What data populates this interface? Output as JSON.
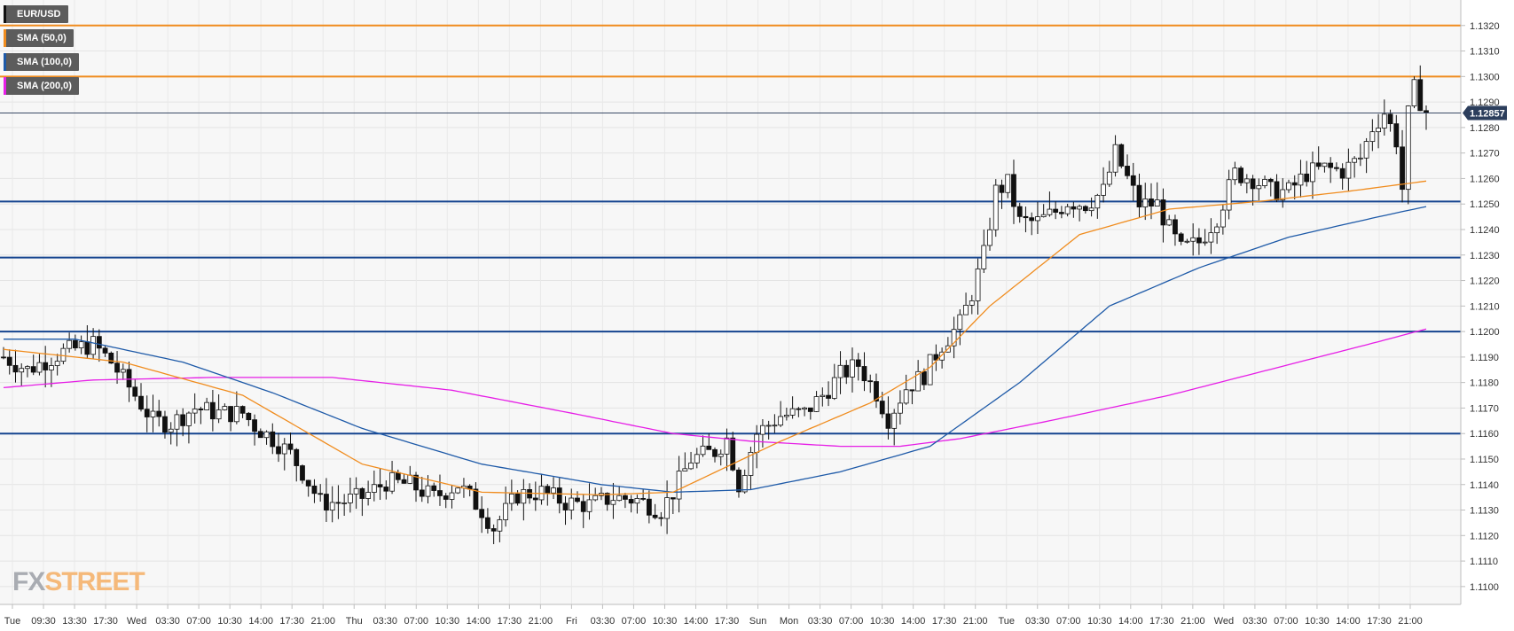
{
  "chart_data": {
    "type": "candlestick",
    "instrument": "EUR/USD",
    "current_price": "1.12857",
    "ylim": [
      1.1093,
      1.133
    ],
    "y_ticks": [
      "1.1100",
      "1.1110",
      "1.1120",
      "1.1130",
      "1.1140",
      "1.1150",
      "1.1160",
      "1.1170",
      "1.1180",
      "1.1190",
      "1.1200",
      "1.1210",
      "1.1220",
      "1.1230",
      "1.1240",
      "1.1250",
      "1.1260",
      "1.1270",
      "1.1280",
      "1.1290",
      "1.1300",
      "1.1310",
      "1.1320"
    ],
    "x_ticks": [
      "Tue",
      "09:30",
      "13:30",
      "17:30",
      "Wed",
      "03:30",
      "07:00",
      "10:30",
      "14:00",
      "17:30",
      "21:00",
      "Thu",
      "03:30",
      "07:00",
      "10:30",
      "14:00",
      "17:30",
      "21:00",
      "Fri",
      "03:30",
      "07:00",
      "10:30",
      "14:00",
      "17:30",
      "Sun",
      "Mon",
      "03:30",
      "07:00",
      "10:30",
      "14:00",
      "17:30",
      "21:00",
      "Tue",
      "03:30",
      "07:00",
      "10:30",
      "14:00",
      "17:30",
      "21:00",
      "Wed",
      "03:30",
      "07:00",
      "10:30",
      "14:00",
      "17:30",
      "21:00"
    ],
    "grid": true,
    "legend": [
      {
        "label": "EUR/USD",
        "color": "#111111"
      },
      {
        "label": "SMA (50,0)",
        "color": "#f08c1e"
      },
      {
        "label": "SMA (100,0)",
        "color": "#1e5aa8"
      },
      {
        "label": "SMA (200,0)",
        "color": "#e61ee6"
      }
    ],
    "horizontal_levels": [
      {
        "value": 1.132,
        "color": "#f08c1e"
      },
      {
        "value": 1.13,
        "color": "#f08c1e"
      },
      {
        "value": 1.1251,
        "color": "#15448f"
      },
      {
        "value": 1.1229,
        "color": "#15448f"
      },
      {
        "value": 1.12,
        "color": "#15448f"
      },
      {
        "value": 1.116,
        "color": "#15448f"
      }
    ],
    "price_path": [
      [
        0,
        1.119
      ],
      [
        4,
        1.1185
      ],
      [
        10,
        1.1192
      ],
      [
        15,
        1.1195
      ],
      [
        18,
        1.1188
      ],
      [
        22,
        1.1175
      ],
      [
        25,
        1.1165
      ],
      [
        28,
        1.1164
      ],
      [
        32,
        1.117
      ],
      [
        36,
        1.1168
      ],
      [
        40,
        1.1168
      ],
      [
        42,
        1.1163
      ],
      [
        45,
        1.1158
      ],
      [
        48,
        1.1152
      ],
      [
        50,
        1.1145
      ],
      [
        53,
        1.1133
      ],
      [
        56,
        1.1133
      ],
      [
        60,
        1.1135
      ],
      [
        64,
        1.1141
      ],
      [
        68,
        1.114
      ],
      [
        72,
        1.1135
      ],
      [
        76,
        1.114
      ],
      [
        80,
        1.113
      ],
      [
        82,
        1.1123
      ],
      [
        86,
        1.1136
      ],
      [
        90,
        1.1137
      ],
      [
        94,
        1.1133
      ],
      [
        98,
        1.1132
      ],
      [
        102,
        1.1135
      ],
      [
        106,
        1.1134
      ],
      [
        110,
        1.113
      ],
      [
        112,
        1.1137
      ],
      [
        115,
        1.115
      ],
      [
        119,
        1.1153
      ],
      [
        121,
        1.1158
      ],
      [
        123,
        1.114
      ],
      [
        126,
        1.116
      ],
      [
        130,
        1.1167
      ],
      [
        134,
        1.1168
      ],
      [
        137,
        1.1175
      ],
      [
        140,
        1.1183
      ],
      [
        143,
        1.1187
      ],
      [
        146,
        1.1176
      ],
      [
        148,
        1.1166
      ],
      [
        151,
        1.1178
      ],
      [
        154,
        1.1183
      ],
      [
        157,
        1.1195
      ],
      [
        160,
        1.1203
      ],
      [
        162,
        1.1215
      ],
      [
        164,
        1.123
      ],
      [
        166,
        1.1255
      ],
      [
        168,
        1.1258
      ],
      [
        170,
        1.1243
      ],
      [
        173,
        1.1243
      ],
      [
        176,
        1.1247
      ],
      [
        178,
        1.1251
      ],
      [
        181,
        1.125
      ],
      [
        184,
        1.1255
      ],
      [
        186,
        1.127
      ],
      [
        188,
        1.126
      ],
      [
        190,
        1.125
      ],
      [
        193,
        1.125
      ],
      [
        195,
        1.124
      ],
      [
        197,
        1.1232
      ],
      [
        200,
        1.1235
      ],
      [
        203,
        1.1245
      ],
      [
        206,
        1.1262
      ],
      [
        209,
        1.126
      ],
      [
        212,
        1.1255
      ],
      [
        215,
        1.1255
      ],
      [
        218,
        1.1262
      ],
      [
        221,
        1.1264
      ],
      [
        224,
        1.1263
      ],
      [
        227,
        1.1268
      ],
      [
        229,
        1.128
      ],
      [
        231,
        1.1286
      ],
      [
        233,
        1.1275
      ],
      [
        234,
        1.1256
      ],
      [
        235,
        1.1285
      ],
      [
        236,
        1.1295
      ],
      [
        238,
        1.1286
      ]
    ],
    "sma_50": [
      [
        0,
        1.1193
      ],
      [
        20,
        1.1188
      ],
      [
        40,
        1.1175
      ],
      [
        60,
        1.1148
      ],
      [
        80,
        1.1137
      ],
      [
        100,
        1.1136
      ],
      [
        112,
        1.1137
      ],
      [
        130,
        1.1157
      ],
      [
        145,
        1.1172
      ],
      [
        155,
        1.1186
      ],
      [
        165,
        1.121
      ],
      [
        180,
        1.1238
      ],
      [
        195,
        1.1248
      ],
      [
        210,
        1.1251
      ],
      [
        225,
        1.1255
      ],
      [
        238,
        1.1259
      ]
    ],
    "sma_100": [
      [
        0,
        1.1197
      ],
      [
        12,
        1.1197
      ],
      [
        30,
        1.1188
      ],
      [
        45,
        1.1176
      ],
      [
        60,
        1.1162
      ],
      [
        80,
        1.1148
      ],
      [
        100,
        1.114
      ],
      [
        112,
        1.1137
      ],
      [
        125,
        1.1138
      ],
      [
        140,
        1.1145
      ],
      [
        155,
        1.1155
      ],
      [
        170,
        1.118
      ],
      [
        185,
        1.121
      ],
      [
        200,
        1.1225
      ],
      [
        215,
        1.1237
      ],
      [
        230,
        1.1245
      ],
      [
        238,
        1.1249
      ]
    ],
    "sma_200": [
      [
        0,
        1.1178
      ],
      [
        15,
        1.1181
      ],
      [
        35,
        1.1182
      ],
      [
        55,
        1.1182
      ],
      [
        75,
        1.1177
      ],
      [
        95,
        1.1168
      ],
      [
        112,
        1.116
      ],
      [
        125,
        1.1157
      ],
      [
        140,
        1.1155
      ],
      [
        150,
        1.1155
      ],
      [
        160,
        1.1158
      ],
      [
        175,
        1.1165
      ],
      [
        195,
        1.1175
      ],
      [
        215,
        1.1187
      ],
      [
        230,
        1.1196
      ],
      [
        238,
        1.1201
      ]
    ]
  }
}
